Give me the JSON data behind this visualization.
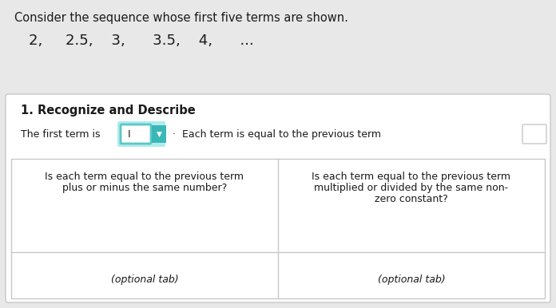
{
  "bg_color": "#e8e8e8",
  "card_bg": "#f5f5f5",
  "white": "#ffffff",
  "border_color": "#c8c8c8",
  "teal_border": "#5bc8c8",
  "teal_fill": "#e0f5f5",
  "dropdown_color": "#3ab8b8",
  "text_dark": "#1a1a1a",
  "header_text": "Consider the sequence whose first five terms are shown.",
  "sequence_text": "2,     2.5,    3,      3.5,    4,      ...",
  "section_title": "1. Recognize and Describe",
  "line1_part1": "The first term is",
  "line1_dot": "·",
  "line1_part2": "Each term is equal to the previous term",
  "left_line1": "Is each term equal to the previous term",
  "left_line2": "plus or minus the same number?",
  "left_line3": "(optional tab)",
  "right_line1": "Is each term equal to the previous term",
  "right_line2": "multiplied or divided by the same non-",
  "right_line3": "zero constant?",
  "right_line4": "(optional tab)",
  "font_header": 10.5,
  "font_seq": 13,
  "font_section": 10.5,
  "font_body": 9.0
}
